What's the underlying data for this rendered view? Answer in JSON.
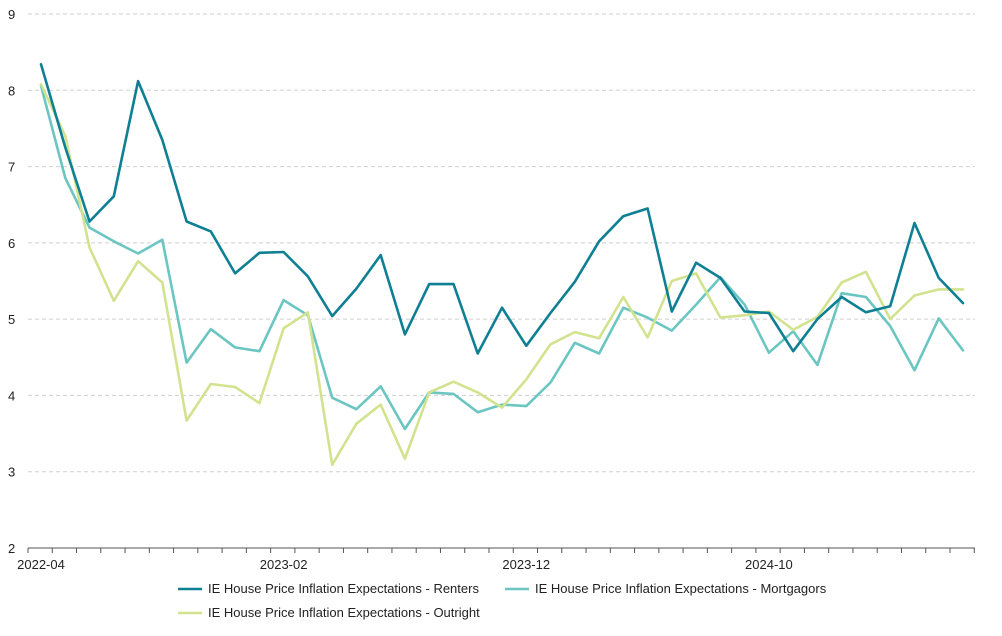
{
  "chart_data": {
    "type": "line",
    "title": "",
    "xlabel": "",
    "ylabel": "",
    "ylim": [
      2,
      9
    ],
    "yticks": [
      2,
      3,
      4,
      5,
      6,
      7,
      8,
      9
    ],
    "grid": "horizontal-dashed",
    "legend_position": "bottom",
    "x_tick_labels": [
      {
        "index": 0,
        "label": "2022-04"
      },
      {
        "index": 10,
        "label": "2023-02"
      },
      {
        "index": 20,
        "label": "2023-12"
      },
      {
        "index": 30,
        "label": "2024-10"
      }
    ],
    "x": [
      "2022-04",
      "2022-05",
      "2022-06",
      "2022-07",
      "2022-08",
      "2022-09",
      "2022-10",
      "2022-11",
      "2022-12",
      "2023-01",
      "2023-02",
      "2023-03",
      "2023-04",
      "2023-05",
      "2023-06",
      "2023-07",
      "2023-08",
      "2023-09",
      "2023-10",
      "2023-11",
      "2023-12",
      "2024-01",
      "2024-02",
      "2024-03",
      "2024-04",
      "2024-05",
      "2024-06",
      "2024-07",
      "2024-08",
      "2024-09",
      "2024-10",
      "2024-11",
      "2024-12",
      "2025-01",
      "2025-02",
      "2025-03",
      "2025-04",
      "2025-05",
      "2025-06"
    ],
    "series": [
      {
        "name": "IE House Price Inflation Expectations - Renters",
        "color": "#0f7f93",
        "values": [
          8.34,
          7.25,
          6.28,
          6.61,
          8.12,
          7.35,
          6.28,
          6.15,
          5.6,
          5.87,
          5.88,
          5.56,
          5.04,
          5.4,
          5.84,
          4.8,
          5.46,
          5.46,
          4.55,
          5.15,
          4.65,
          5.08,
          5.49,
          6.02,
          6.35,
          6.45,
          5.1,
          5.74,
          5.54,
          5.1,
          5.08,
          4.58,
          5.0,
          5.29,
          5.09,
          5.17,
          6.26,
          5.54,
          5.21
        ]
      },
      {
        "name": "IE House Price Inflation Expectations - Mortgagors",
        "color": "#6bc6c2",
        "values": [
          8.06,
          6.85,
          6.2,
          6.02,
          5.86,
          6.04,
          4.43,
          4.87,
          4.63,
          4.58,
          5.25,
          5.05,
          3.97,
          3.82,
          4.12,
          3.56,
          4.04,
          4.02,
          3.78,
          3.88,
          3.86,
          4.17,
          4.69,
          4.55,
          5.15,
          5.02,
          4.85,
          5.19,
          5.55,
          5.19,
          4.56,
          4.84,
          4.4,
          5.34,
          5.29,
          4.91,
          4.33,
          5.01,
          4.59
        ]
      },
      {
        "name": "IE House Price Inflation Expectations - Outright",
        "color": "#d2e38f",
        "values": [
          8.08,
          7.4,
          5.94,
          5.24,
          5.76,
          5.48,
          3.67,
          4.15,
          4.11,
          3.9,
          4.88,
          5.09,
          3.09,
          3.63,
          3.88,
          3.17,
          4.04,
          4.18,
          4.04,
          3.84,
          4.21,
          4.67,
          4.83,
          4.75,
          5.29,
          4.76,
          5.5,
          5.6,
          5.02,
          5.05,
          5.1,
          4.86,
          5.03,
          5.48,
          5.62,
          5.0,
          5.31,
          5.39,
          5.39
        ]
      }
    ]
  }
}
